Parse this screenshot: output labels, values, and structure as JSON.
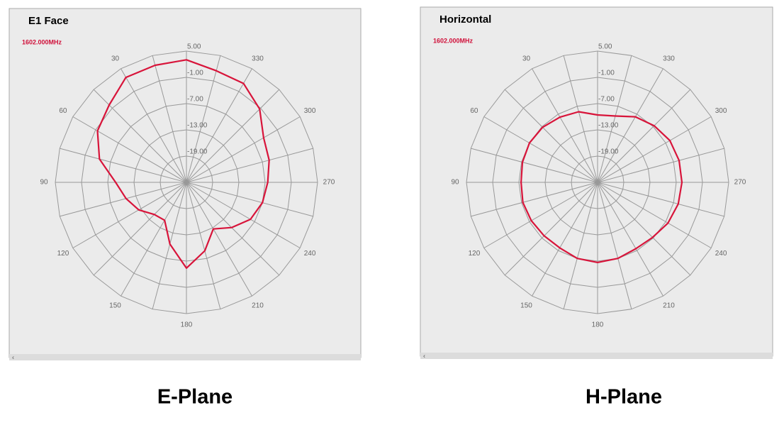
{
  "chart_data": [
    {
      "type": "polar",
      "title": "E1 Face",
      "subtitle": "1602.000MHz",
      "caption": "E-Plane",
      "angles": [
        0,
        15,
        30,
        45,
        60,
        75,
        90,
        105,
        120,
        135,
        150,
        165,
        180,
        195,
        210,
        225,
        240,
        255,
        270,
        285,
        300,
        315,
        330,
        345
      ],
      "series": [
        {
          "color": "#d8143a",
          "values": [
            3.0,
            2.7,
            2.7,
            0.0,
            -1.5,
            -4.4,
            -8.8,
            -10.7,
            -12.4,
            -14.6,
            -15.0,
            -10.4,
            -5.4,
            -8.8,
            -12.7,
            -10.4,
            -8.1,
            -7.0,
            -6.4,
            -5.4,
            -4.6,
            -1.3,
            1.1,
            1.4
          ]
        }
      ],
      "rlim": [
        -25,
        5
      ],
      "rticks": [
        {
          "value": 5,
          "label": "5.00"
        },
        {
          "value": -1,
          "label": "-1.00"
        },
        {
          "value": -7,
          "label": "-7.00"
        },
        {
          "value": -13,
          "label": "-13.00"
        },
        {
          "value": -19,
          "label": "-19.00"
        }
      ],
      "thetaticks": [
        30,
        60,
        90,
        120,
        150,
        180,
        210,
        240,
        270,
        300,
        330
      ],
      "direction": "counterclockwise",
      "grid": true
    },
    {
      "type": "polar",
      "title": "Horizontal",
      "subtitle": "1602.000MHz",
      "caption": "H-Plane",
      "angles": [
        0,
        15,
        30,
        45,
        60,
        75,
        90,
        105,
        120,
        135,
        150,
        165,
        180,
        195,
        210,
        225,
        240,
        255,
        270,
        285,
        300,
        315,
        330,
        345
      ],
      "series": [
        {
          "color": "#d8143a",
          "values": [
            -9.6,
            -8.3,
            -7.8,
            -7.2,
            -7.0,
            -7.2,
            -7.5,
            -7.3,
            -7.5,
            -7.7,
            -7.7,
            -7.0,
            -6.7,
            -7.0,
            -7.5,
            -7.2,
            -6.4,
            -5.9,
            -5.7,
            -5.7,
            -5.9,
            -6.7,
            -7.7,
            -9.3
          ]
        }
      ],
      "rlim": [
        -25,
        5
      ],
      "rticks": [
        {
          "value": 5,
          "label": "5.00"
        },
        {
          "value": -1,
          "label": "-1.00"
        },
        {
          "value": -7,
          "label": "-7.00"
        },
        {
          "value": -13,
          "label": "-13.00"
        },
        {
          "value": -19,
          "label": "-19.00"
        }
      ],
      "thetaticks": [
        30,
        60,
        90,
        120,
        150,
        180,
        210,
        240,
        270,
        300,
        330
      ],
      "direction": "counterclockwise",
      "grid": true
    }
  ]
}
